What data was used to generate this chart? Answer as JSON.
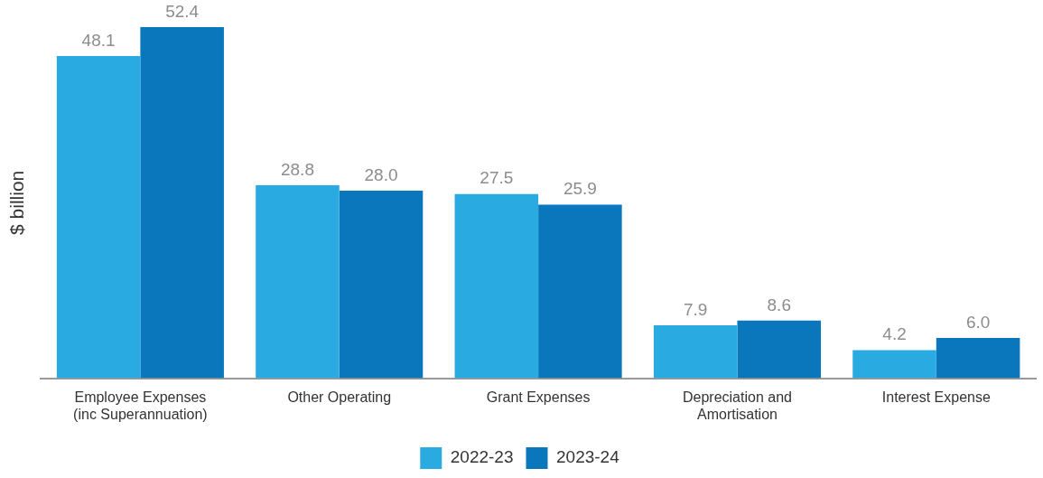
{
  "chart_data": {
    "type": "bar",
    "ylabel": "$ billion",
    "categories": [
      "Employee Expenses (inc Superannuation)",
      "Other Operating",
      "Grant Expenses",
      "Depreciation and Amortisation",
      "Interest Expense"
    ],
    "series": [
      {
        "name": "2022-23",
        "color": "#29abe2",
        "values": [
          48.1,
          28.8,
          27.5,
          7.9,
          4.2
        ],
        "value_labels": [
          "48.1",
          "28.8",
          "27.5",
          "7.9",
          "4.2"
        ]
      },
      {
        "name": "2023-24",
        "color": "#0a77bd",
        "values": [
          52.4,
          28.0,
          25.9,
          8.6,
          6.0
        ],
        "value_labels": [
          "52.4",
          "28.0",
          "25.9",
          "8.6",
          "6.0"
        ]
      }
    ],
    "grid": false,
    "legend": "bottom"
  }
}
